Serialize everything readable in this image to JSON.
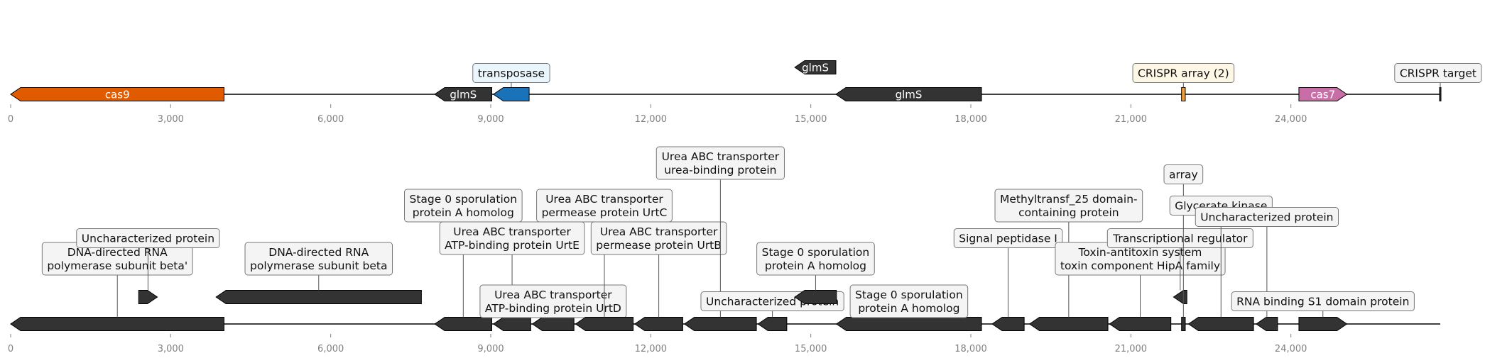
{
  "tracks": [
    {
      "id": "top",
      "length": 26800,
      "ticks": [
        {
          "pos": 0,
          "label": "0"
        },
        {
          "pos": 3000,
          "label": "3,000"
        },
        {
          "pos": 6000,
          "label": "6,000"
        },
        {
          "pos": 9000,
          "label": "9,000"
        },
        {
          "pos": 12000,
          "label": "12,000"
        },
        {
          "pos": 15000,
          "label": "15,000"
        },
        {
          "pos": 18000,
          "label": "18,000"
        },
        {
          "pos": 21000,
          "label": "21,000"
        },
        {
          "pos": 24000,
          "label": "24,000"
        }
      ],
      "features": [
        {
          "name": "cas9",
          "start": 0,
          "end": 4000,
          "strand": -1,
          "color": "#e05a00",
          "inner_label": "cas9"
        },
        {
          "name": "glmS-1",
          "start": 7950,
          "end": 9020,
          "strand": -1,
          "color": "#333333",
          "inner_label": "glmS"
        },
        {
          "name": "transposase",
          "start": 9050,
          "end": 9720,
          "strand": -1,
          "color": "#1a73b8",
          "box_label": [
            "transposase"
          ],
          "box_bg": "#eaf6fc",
          "box_level": 0
        },
        {
          "name": "glmS-2",
          "start": 14700,
          "end": 15470,
          "strand": -1,
          "color": "#333333",
          "inner_label": "glmS",
          "row_up": 1
        },
        {
          "name": "glmS-3",
          "start": 15470,
          "end": 18200,
          "strand": -1,
          "color": "#333333",
          "inner_label": "glmS"
        },
        {
          "name": "crispr-array",
          "start": 21950,
          "end": 22020,
          "strand": 0,
          "color": "#f0a03a",
          "box_label": [
            "CRISPR array (2)"
          ],
          "box_bg": "#fdf8e6",
          "box_level": 0
        },
        {
          "name": "cas7",
          "start": 24150,
          "end": 25050,
          "strand": 1,
          "color": "#c86ea6",
          "inner_label": "cas7"
        },
        {
          "name": "crispr-target",
          "start": 26780,
          "end": 26800,
          "strand": 0,
          "color": "#333333",
          "box_label": [
            "CRISPR target"
          ],
          "box_bg": "#f4f4f4",
          "box_level": 0,
          "anchor": "end",
          "marker": "bar"
        }
      ]
    },
    {
      "id": "bottom",
      "length": 26800,
      "ticks": [
        {
          "pos": 0,
          "label": "0"
        },
        {
          "pos": 3000,
          "label": "3,000"
        },
        {
          "pos": 6000,
          "label": "6,000"
        },
        {
          "pos": 9000,
          "label": "9,000"
        },
        {
          "pos": 12000,
          "label": "12,000"
        },
        {
          "pos": 15000,
          "label": "15,000"
        },
        {
          "pos": 18000,
          "label": "18,000"
        },
        {
          "pos": 21000,
          "label": "21,000"
        },
        {
          "pos": 24000,
          "label": "24,000"
        }
      ],
      "features": [
        {
          "name": "dna-directed-rna-polymerase-beta-prime",
          "start": 0,
          "end": 4000,
          "strand": -1,
          "color": "#333333",
          "box_label": [
            "DNA-directed RNA",
            "polymerase subunit beta'"
          ],
          "box_level": 1,
          "label_pos": 2000
        },
        {
          "name": "uncharacterized-protein-1",
          "start": 2400,
          "end": 2750,
          "strand": 1,
          "color": "#333333",
          "row_up": 1,
          "box_label": [
            "Uncharacterized protein"
          ],
          "box_level": 2
        },
        {
          "name": "dna-directed-rna-polymerase-beta",
          "start": 3850,
          "end": 7700,
          "strand": -1,
          "color": "#333333",
          "row_up": 1,
          "box_label": [
            "DNA-directed RNA",
            "polymerase subunit beta"
          ],
          "box_level": 1
        },
        {
          "name": "stage-0-sporulation-a-1",
          "start": 7950,
          "end": 9020,
          "strand": -1,
          "color": "#333333",
          "box_label": [
            "Stage 0 sporulation",
            "protein A homolog"
          ],
          "box_level": 4
        },
        {
          "name": "urea-abc-urte",
          "start": 9050,
          "end": 9750,
          "strand": -1,
          "color": "#333333",
          "box_label": [
            "Urea ABC transporter",
            "ATP-binding protein UrtE"
          ],
          "box_level": 2
        },
        {
          "name": "urea-abc-urtd",
          "start": 9780,
          "end": 10560,
          "strand": -1,
          "color": "#333333",
          "box_label": [
            "Urea ABC transporter",
            "ATP-binding protein UrtD"
          ],
          "box_level": 0
        },
        {
          "name": "urea-abc-urtc",
          "start": 10590,
          "end": 11670,
          "strand": -1,
          "color": "#333333",
          "box_label": [
            "Urea ABC transporter",
            "permease protein UrtC"
          ],
          "box_level": 4
        },
        {
          "name": "urea-abc-urtb",
          "start": 11700,
          "end": 12600,
          "strand": -1,
          "color": "#333333",
          "box_label": [
            "Urea ABC transporter",
            "permease protein UrtB"
          ],
          "box_level": 2
        },
        {
          "name": "urea-abc-urea-binding",
          "start": 12630,
          "end": 13980,
          "strand": -1,
          "color": "#333333",
          "box_label": [
            "Urea ABC transporter",
            "urea-binding protein"
          ],
          "box_level": 6
        },
        {
          "name": "uncharacterized-protein-2",
          "start": 14010,
          "end": 14550,
          "strand": -1,
          "color": "#333333",
          "box_label": [
            "Uncharacterized protein"
          ],
          "box_level": 0
        },
        {
          "name": "stage-0-sporulation-a-2",
          "start": 14700,
          "end": 15480,
          "strand": -1,
          "color": "#333333",
          "row_up": 1,
          "box_label": [
            "Stage 0 sporulation",
            "protein A homolog"
          ],
          "box_level": 1
        },
        {
          "name": "stage-0-sporulation-a-3",
          "start": 15480,
          "end": 18200,
          "strand": -1,
          "color": "#333333",
          "box_label": [
            "Stage 0 sporulation",
            "protein A homolog"
          ],
          "box_level": 0
        },
        {
          "name": "signal-peptidase-i",
          "start": 18400,
          "end": 19000,
          "strand": -1,
          "color": "#333333",
          "box_label": [
            "Signal peptidase I"
          ],
          "box_level": 2
        },
        {
          "name": "methyltransf-25",
          "start": 19100,
          "end": 20570,
          "strand": -1,
          "color": "#333333",
          "box_label": [
            "Methyltransf_25 domain-",
            "containing protein"
          ],
          "box_level": 4
        },
        {
          "name": "toxin-antitoxin-hipa",
          "start": 20600,
          "end": 21750,
          "strand": -1,
          "color": "#333333",
          "box_label": [
            "Toxin-antitoxin system",
            "toxin component HipA family"
          ],
          "box_level": 1
        },
        {
          "name": "transcriptional-regulator",
          "start": 21800,
          "end": 22050,
          "strand": -1,
          "color": "#333333",
          "row_up": 1,
          "box_label": [
            "Transcriptional regulator"
          ],
          "box_level": 2
        },
        {
          "name": "array",
          "start": 21950,
          "end": 22020,
          "strand": 0,
          "color": "#333333",
          "box_label": [
            "array"
          ],
          "box_level": 5,
          "marker": "bar"
        },
        {
          "name": "glycerate-kinase",
          "start": 22080,
          "end": 23300,
          "strand": -1,
          "color": "#333333",
          "box_label": [
            "Glycerate kinase"
          ],
          "box_level": 4
        },
        {
          "name": "uncharacterized-protein-3",
          "start": 23350,
          "end": 23750,
          "strand": -1,
          "color": "#333333",
          "box_label": [
            "Uncharacterized protein"
          ],
          "box_level": 3
        },
        {
          "name": "rna-binding-s1",
          "start": 24150,
          "end": 25050,
          "strand": 1,
          "color": "#333333",
          "box_label": [
            "RNA binding S1 domain protein"
          ],
          "box_level": 0
        }
      ]
    }
  ]
}
